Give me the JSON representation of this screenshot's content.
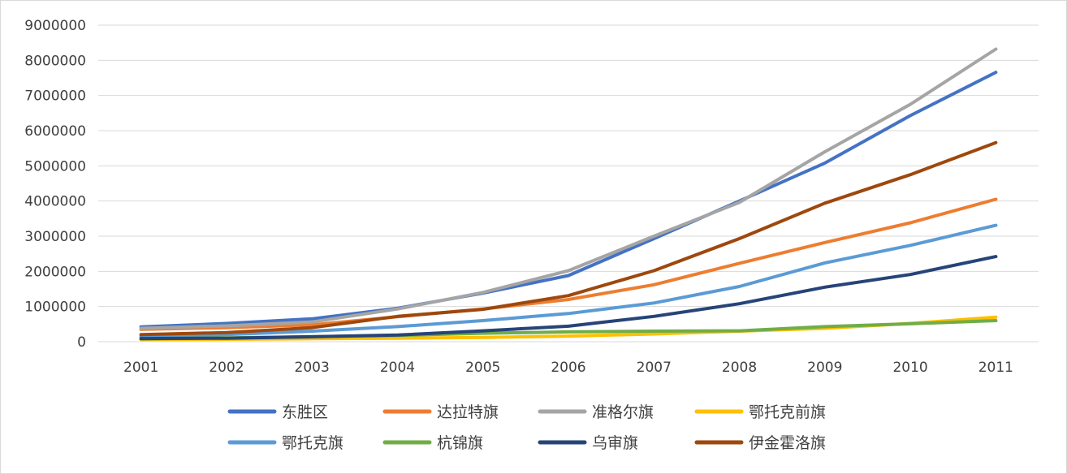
{
  "chart_data": {
    "type": "line",
    "title": "",
    "xlabel": "",
    "ylabel": "",
    "x": [
      "2001",
      "2002",
      "2003",
      "2004",
      "2005",
      "2006",
      "2007",
      "2008",
      "2009",
      "2010",
      "2011"
    ],
    "ylim": [
      0,
      9000000
    ],
    "yticks": [
      "0",
      "1000000",
      "2000000",
      "3000000",
      "4000000",
      "5000000",
      "6000000",
      "7000000",
      "8000000",
      "9000000"
    ],
    "grid": "horizontal",
    "legend_position": "bottom",
    "series": [
      {
        "name": "东胜区",
        "color": "#4472c4",
        "values": [
          420000,
          520000,
          650000,
          950000,
          1380000,
          1880000,
          2930000,
          4000000,
          5080000,
          6430000,
          7660000
        ]
      },
      {
        "name": "达拉特旗",
        "color": "#ed7d31",
        "values": [
          350000,
          400000,
          480000,
          710000,
          930000,
          1200000,
          1620000,
          2230000,
          2820000,
          3380000,
          4050000
        ]
      },
      {
        "name": "准格尔旗",
        "color": "#a5a5a5",
        "values": [
          380000,
          450000,
          560000,
          930000,
          1400000,
          2020000,
          3000000,
          3960000,
          5400000,
          6750000,
          8320000
        ]
      },
      {
        "name": "鄂托克前旗",
        "color": "#ffc000",
        "values": [
          60000,
          70000,
          85000,
          100000,
          120000,
          160000,
          220000,
          300000,
          380000,
          520000,
          700000
        ]
      },
      {
        "name": "鄂托克旗",
        "color": "#5b9bd5",
        "values": [
          150000,
          200000,
          300000,
          430000,
          600000,
          800000,
          1100000,
          1570000,
          2240000,
          2740000,
          3310000
        ]
      },
      {
        "name": "杭锦旗",
        "color": "#70ad47",
        "values": [
          80000,
          110000,
          140000,
          180000,
          240000,
          280000,
          300000,
          310000,
          430000,
          510000,
          600000
        ]
      },
      {
        "name": "乌审旗",
        "color": "#264478",
        "values": [
          90000,
          100000,
          140000,
          190000,
          310000,
          440000,
          720000,
          1080000,
          1550000,
          1910000,
          2420000
        ]
      },
      {
        "name": "伊金霍洛旗",
        "color": "#9e480e",
        "values": [
          200000,
          260000,
          400000,
          720000,
          920000,
          1310000,
          2020000,
          2930000,
          3940000,
          4750000,
          5660000
        ]
      }
    ]
  }
}
